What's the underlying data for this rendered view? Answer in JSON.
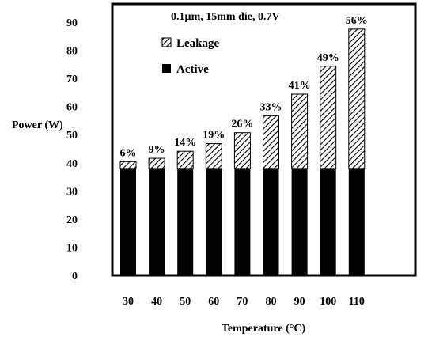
{
  "chart_data": {
    "type": "bar",
    "stacked": true,
    "title": "0.1µm, 15mm die, 0.7V",
    "xlabel": "Temperature (°C)",
    "ylabel": "Power (W)",
    "ylim": [
      0,
      95
    ],
    "yticks": [
      "0",
      "10",
      "20",
      "30",
      "40",
      "50",
      "60",
      "70",
      "80",
      "90"
    ],
    "categories": [
      "30",
      "40",
      "50",
      "60",
      "70",
      "80",
      "90",
      "100",
      "110"
    ],
    "series": [
      {
        "name": "Active",
        "pattern": "solid",
        "color": "#000000",
        "values": [
          38,
          38,
          38,
          38,
          38,
          38,
          38,
          38,
          38
        ]
      },
      {
        "name": "Leakage",
        "pattern": "diagonal-hatch",
        "color": "#000000",
        "values": [
          2.4,
          3.6,
          6.1,
          8.8,
          12.7,
          18.7,
          26.4,
          36.3,
          49.5
        ]
      }
    ],
    "data_labels": [
      "6%",
      "9%",
      "14%",
      "19%",
      "26%",
      "33%",
      "41%",
      "49%",
      "56%"
    ],
    "legend": [
      "Leakage",
      "Active"
    ],
    "legend_position": "top-left"
  }
}
